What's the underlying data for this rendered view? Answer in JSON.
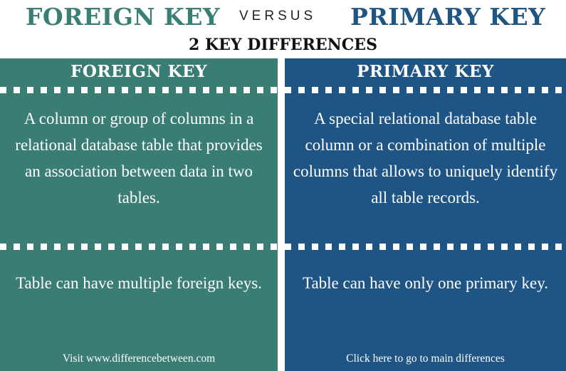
{
  "header": {
    "left_title": "FOREIGN KEY",
    "versus": "VERSUS",
    "right_title": "PRIMARY KEY",
    "subtitle": "2 KEY DIFFERENCES"
  },
  "colors": {
    "foreign_key": "#3a7d74",
    "primary_key": "#1f5585"
  },
  "columns": {
    "foreign": {
      "title": "FOREIGN KEY",
      "definition": "A column or group of columns in a relational database table that provides an association between data in two tables.",
      "quantity": "Table can have multiple foreign keys.",
      "footer": "Visit www.differencebetween.com"
    },
    "primary": {
      "title": "PRIMARY KEY",
      "definition": "A special relational database table column or a combination of multiple columns that allows to uniquely identify all table records.",
      "quantity": "Table can have only one primary key.",
      "footer": "Click here to go to main differences"
    }
  }
}
